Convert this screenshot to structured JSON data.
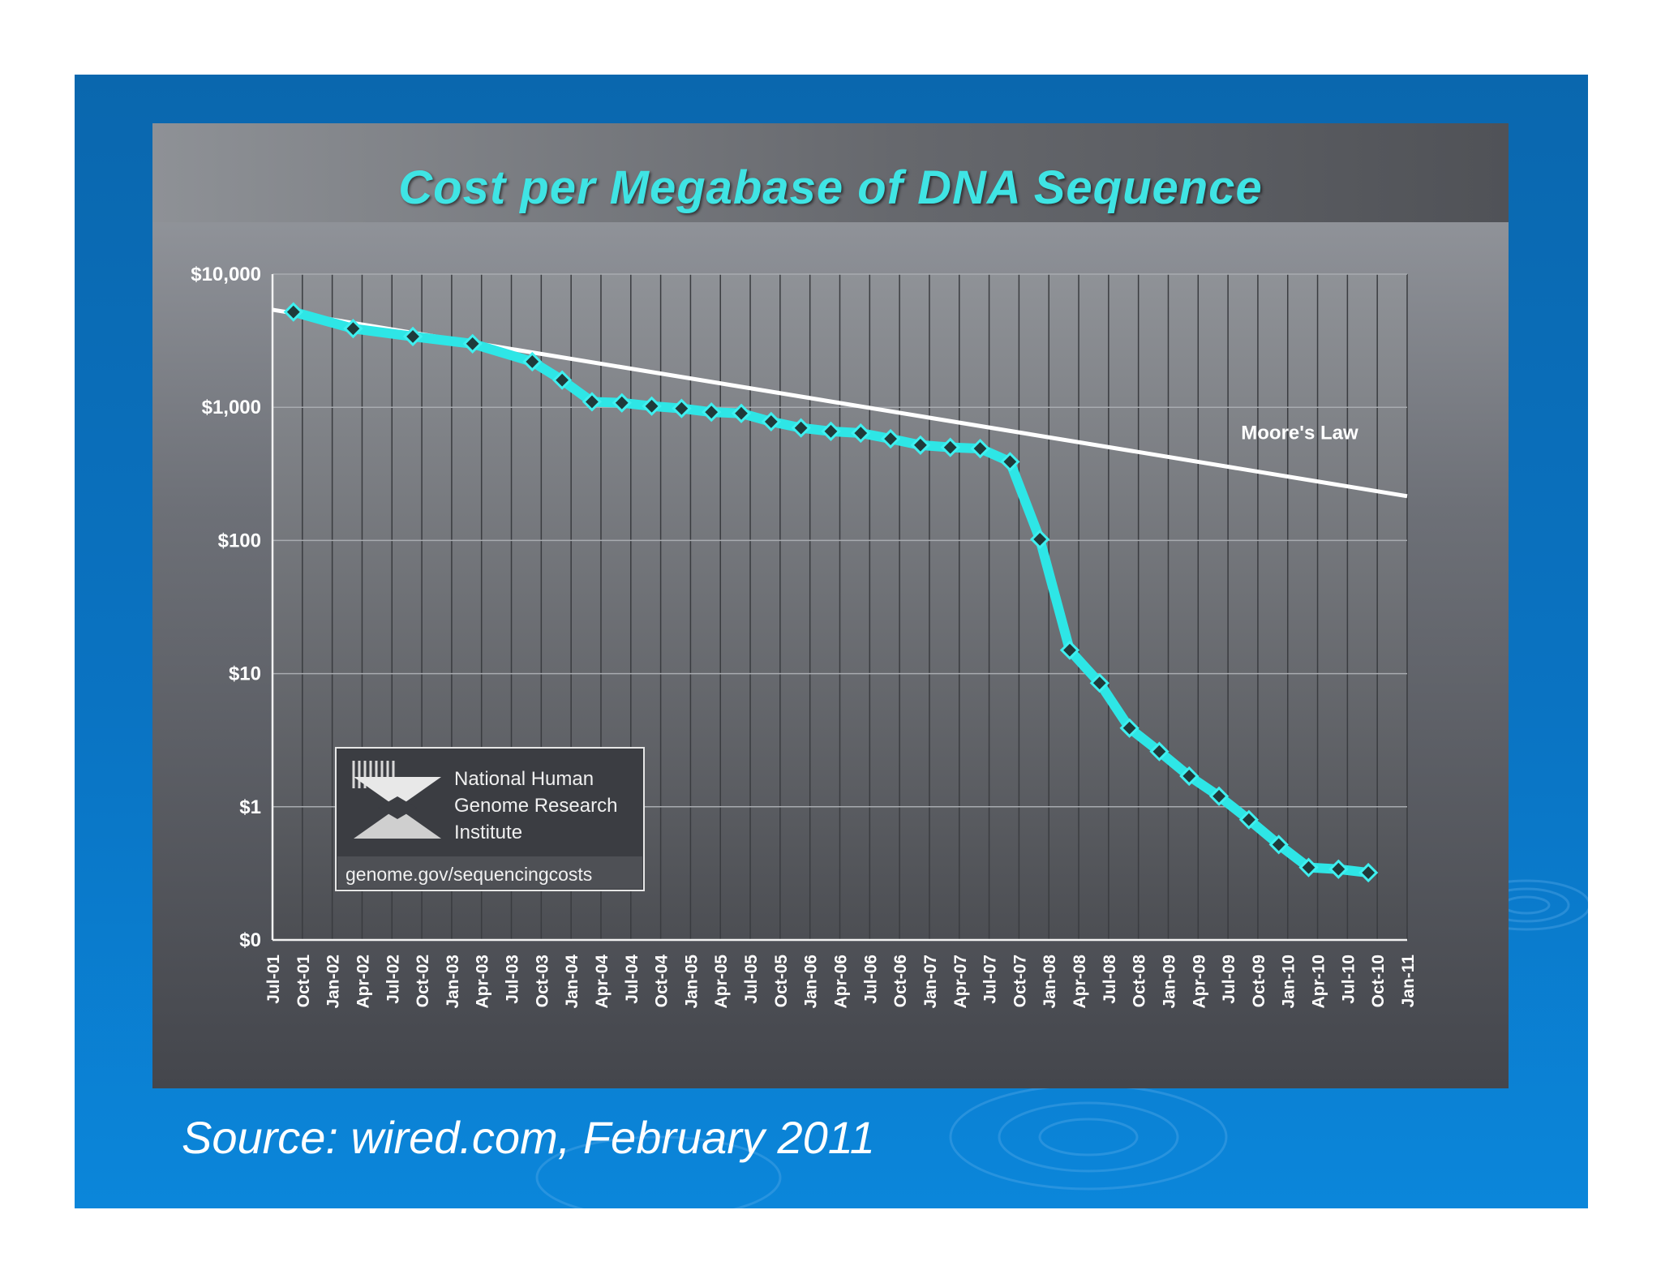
{
  "slide": {
    "source": "Source: wired.com, February 2011"
  },
  "chart_data": {
    "type": "line",
    "title": "Cost per Megabase of DNA Sequence",
    "yscale": "log",
    "yticks": [
      {
        "label": "$10,000",
        "value": 10000
      },
      {
        "label": "$1,000",
        "value": 1000
      },
      {
        "label": "$100",
        "value": 100
      },
      {
        "label": "$10",
        "value": 10
      },
      {
        "label": "$1",
        "value": 1
      },
      {
        "label": "$0",
        "value": 0.1
      }
    ],
    "ylim": [
      0.1,
      10000
    ],
    "categories": [
      "Jul-01",
      "Oct-01",
      "Jan-02",
      "Apr-02",
      "Jul-02",
      "Oct-02",
      "Jan-03",
      "Apr-03",
      "Jul-03",
      "Oct-03",
      "Jan-04",
      "Apr-04",
      "Jul-04",
      "Oct-04",
      "Jan-05",
      "Apr-05",
      "Jul-05",
      "Oct-05",
      "Jan-06",
      "Apr-06",
      "Jul-06",
      "Oct-06",
      "Jan-07",
      "Apr-07",
      "Jul-07",
      "Oct-07",
      "Jan-08",
      "Apr-08",
      "Jul-08",
      "Oct-08",
      "Jan-09",
      "Apr-09",
      "Jul-09",
      "Oct-09",
      "Jan-10",
      "Apr-10",
      "Jul-10",
      "Oct-10",
      "Jan-11"
    ],
    "series": [
      {
        "name": "Cost per Megabase",
        "color": "#2ee6e6",
        "points": [
          {
            "x": 0.7,
            "y": 5200
          },
          {
            "x": 2.7,
            "y": 3900
          },
          {
            "x": 4.7,
            "y": 3400
          },
          {
            "x": 6.7,
            "y": 3000
          },
          {
            "x": 8.7,
            "y": 2200
          },
          {
            "x": 9.7,
            "y": 1600
          },
          {
            "x": 10.7,
            "y": 1100
          },
          {
            "x": 11.7,
            "y": 1080
          },
          {
            "x": 12.7,
            "y": 1020
          },
          {
            "x": 13.7,
            "y": 980
          },
          {
            "x": 14.7,
            "y": 920
          },
          {
            "x": 15.7,
            "y": 900
          },
          {
            "x": 16.7,
            "y": 780
          },
          {
            "x": 17.7,
            "y": 700
          },
          {
            "x": 18.7,
            "y": 660
          },
          {
            "x": 19.7,
            "y": 640
          },
          {
            "x": 20.7,
            "y": 580
          },
          {
            "x": 21.7,
            "y": 520
          },
          {
            "x": 22.7,
            "y": 500
          },
          {
            "x": 23.7,
            "y": 490
          },
          {
            "x": 24.7,
            "y": 390
          },
          {
            "x": 25.7,
            "y": 102
          },
          {
            "x": 26.7,
            "y": 15
          },
          {
            "x": 27.7,
            "y": 8.5
          },
          {
            "x": 28.7,
            "y": 3.9
          },
          {
            "x": 29.7,
            "y": 2.6
          },
          {
            "x": 30.7,
            "y": 1.7
          },
          {
            "x": 31.7,
            "y": 1.2
          },
          {
            "x": 32.7,
            "y": 0.8
          },
          {
            "x": 33.7,
            "y": 0.52
          },
          {
            "x": 34.7,
            "y": 0.35
          },
          {
            "x": 35.7,
            "y": 0.34
          },
          {
            "x": 36.7,
            "y": 0.32
          }
        ]
      },
      {
        "name": "Moore's Law",
        "color": "#ffffff",
        "points": [
          {
            "x": 0,
            "y": 5400
          },
          {
            "x": 38,
            "y": 215
          }
        ]
      }
    ],
    "annotation": "Moore's Law",
    "logo": {
      "line1": "National Human",
      "line2": "Genome Research",
      "line3": "Institute",
      "url": "genome.gov/sequencingcosts"
    }
  }
}
